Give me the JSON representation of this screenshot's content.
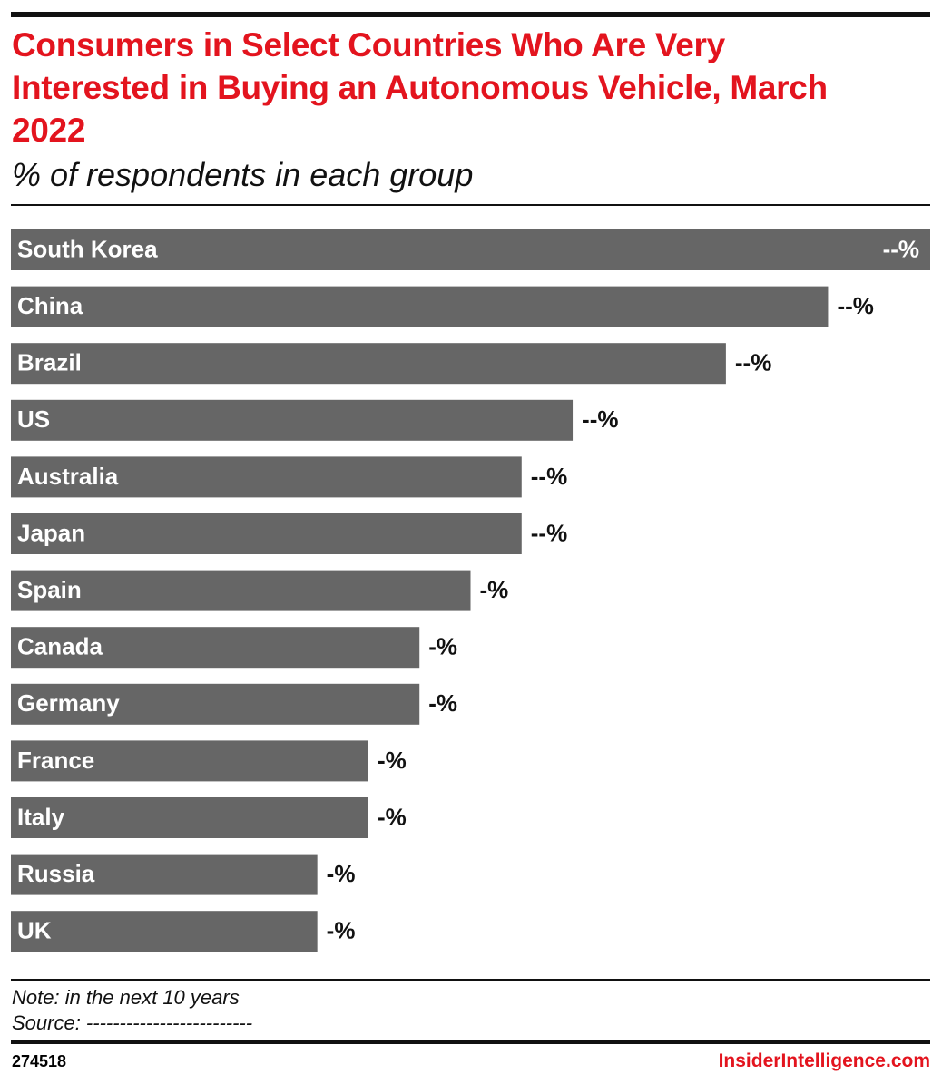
{
  "chart_data": {
    "type": "bar",
    "orientation": "horizontal",
    "title": "Consumers in Select Countries Who Are Very Interested in Buying an Autonomous Vehicle, March 2022",
    "subtitle": "% of respondents in each group",
    "categories": [
      "South Korea",
      "China",
      "Brazil",
      "US",
      "Australia",
      "Japan",
      "Spain",
      "Canada",
      "Germany",
      "France",
      "Italy",
      "Russia",
      "UK"
    ],
    "values": [
      18,
      16,
      14,
      11,
      10,
      10,
      9,
      8,
      8,
      7,
      7,
      6,
      6
    ],
    "value_labels": [
      "--%",
      "--%",
      "--%",
      "--%",
      "--%",
      "--%",
      "-%",
      "-%",
      "-%",
      "-%",
      "-%",
      "-%",
      "-%"
    ],
    "color": "#666666",
    "note": "Note: in the next 10 years",
    "source": "Source: -------------------------"
  },
  "footer": {
    "id": "274518",
    "brand": "InsiderIntelligence.com"
  }
}
